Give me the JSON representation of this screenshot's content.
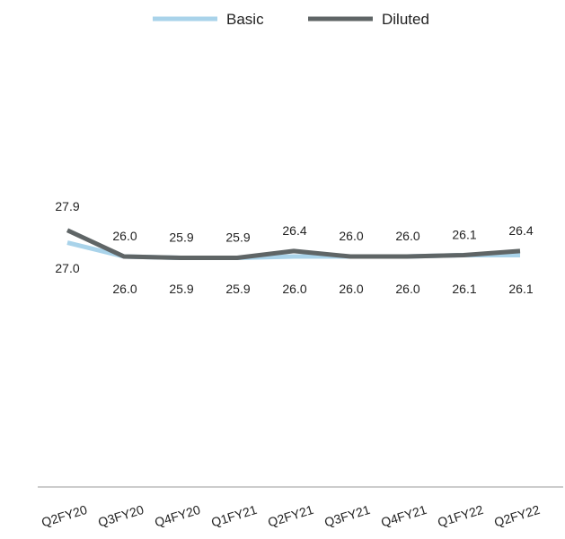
{
  "chart_data": {
    "type": "line",
    "categories": [
      "Q2FY20",
      "Q3FY20",
      "Q4FY20",
      "Q1FY21",
      "Q2FY21",
      "Q3FY21",
      "Q4FY21",
      "Q1FY22",
      "Q2FY22"
    ],
    "series": [
      {
        "name": "Basic",
        "color": "#a9d3ea",
        "values": [
          27.0,
          26.0,
          25.9,
          25.9,
          26.0,
          26.0,
          26.0,
          26.1,
          26.1
        ]
      },
      {
        "name": "Diluted",
        "color": "#5f6566",
        "values": [
          27.9,
          26.0,
          25.9,
          25.9,
          26.4,
          26.0,
          26.0,
          26.1,
          26.4
        ]
      }
    ],
    "data_labels": {
      "Basic": [
        "27.0",
        "26.0",
        "25.9",
        "25.9",
        "26.0",
        "26.0",
        "26.0",
        "26.1",
        "26.1"
      ],
      "Diluted": [
        "27.9",
        "26.0",
        "25.9",
        "25.9",
        "26.4",
        "26.0",
        "26.0",
        "26.1",
        "26.4"
      ]
    },
    "legend": {
      "position": "top",
      "items": [
        "Basic",
        "Diluted"
      ]
    },
    "grid": false,
    "title": "",
    "xlabel": "",
    "ylabel": ""
  }
}
